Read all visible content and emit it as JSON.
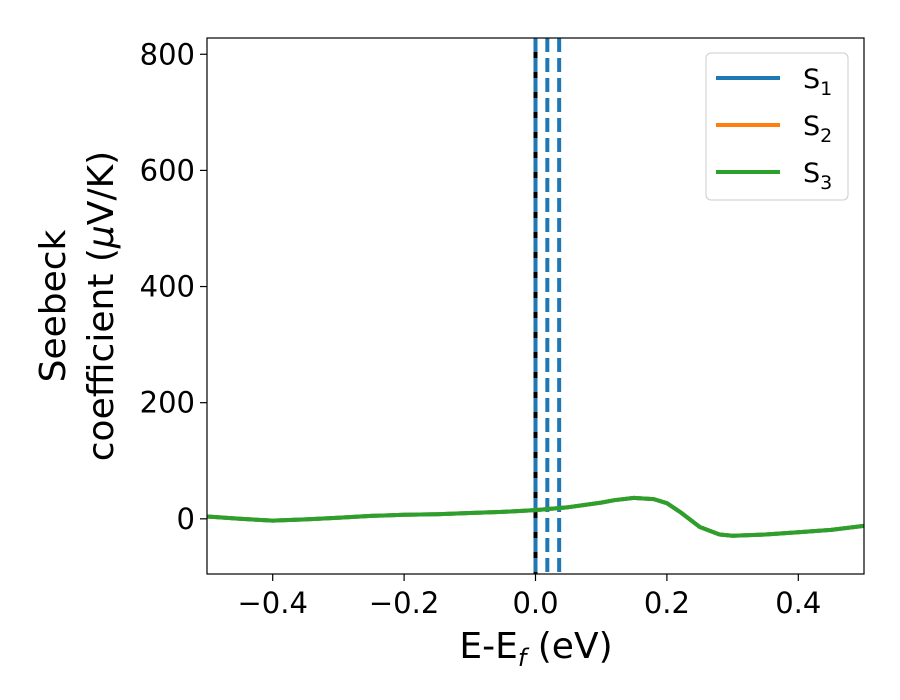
{
  "chart_data": {
    "type": "line",
    "title": "",
    "xlabel": "E-E",
    "xlabel_sub": "f",
    "xlabel_unit": " (eV)",
    "ylabel_line1": "Seebeck",
    "ylabel_line2_pre": "coefficient  (",
    "ylabel_mu": "μ",
    "ylabel_line2_post": "V/K)",
    "xlim": [
      -0.5,
      0.5
    ],
    "ylim": [
      -95,
      828
    ],
    "xticks": [
      -0.4,
      -0.2,
      0.0,
      0.2,
      0.4
    ],
    "xtick_labels": [
      "−0.4",
      "−0.2",
      "0.0",
      "0.2",
      "0.4"
    ],
    "yticks": [
      0,
      200,
      400,
      600,
      800
    ],
    "ytick_labels": [
      "0",
      "200",
      "400",
      "600",
      "800"
    ],
    "grid": false,
    "legend_position": "top-right",
    "x": [
      -0.5,
      -0.45,
      -0.4,
      -0.35,
      -0.3,
      -0.25,
      -0.2,
      -0.15,
      -0.1,
      -0.05,
      0.0,
      0.05,
      0.1,
      0.12,
      0.15,
      0.18,
      0.2,
      0.22,
      0.25,
      0.28,
      0.3,
      0.35,
      0.4,
      0.45,
      0.5
    ],
    "series": [
      {
        "name": "S",
        "sub": "1",
        "color": "#1f77b4",
        "values": [
          4,
          0,
          -3,
          -1,
          2,
          5,
          7,
          8,
          10,
          12,
          15,
          20,
          28,
          32,
          36,
          34,
          27,
          12,
          -14,
          -27,
          -29,
          -27,
          -23,
          -19,
          -12
        ]
      },
      {
        "name": "S",
        "sub": "2",
        "color": "#ff7f0e",
        "values": [
          4,
          0,
          -3,
          -1,
          2,
          5,
          7,
          8,
          10,
          12,
          15,
          20,
          28,
          32,
          36,
          34,
          27,
          12,
          -14,
          -27,
          -29,
          -27,
          -23,
          -19,
          -12
        ]
      },
      {
        "name": "S",
        "sub": "3",
        "color": "#2ca02c",
        "values": [
          4,
          0,
          -3,
          -1,
          2,
          5,
          7,
          8,
          10,
          12,
          15,
          20,
          28,
          32,
          36,
          34,
          27,
          12,
          -14,
          -27,
          -29,
          -27,
          -23,
          -19,
          -12
        ]
      }
    ],
    "vlines": [
      {
        "x": 0.0,
        "color": "#000000",
        "style": "solid"
      },
      {
        "x": 0.0,
        "color": "#1f77b4",
        "style": "dashed"
      },
      {
        "x": 0.018,
        "color": "#1f77b4",
        "style": "dashed"
      },
      {
        "x": 0.036,
        "color": "#1f77b4",
        "style": "dashed"
      }
    ]
  }
}
